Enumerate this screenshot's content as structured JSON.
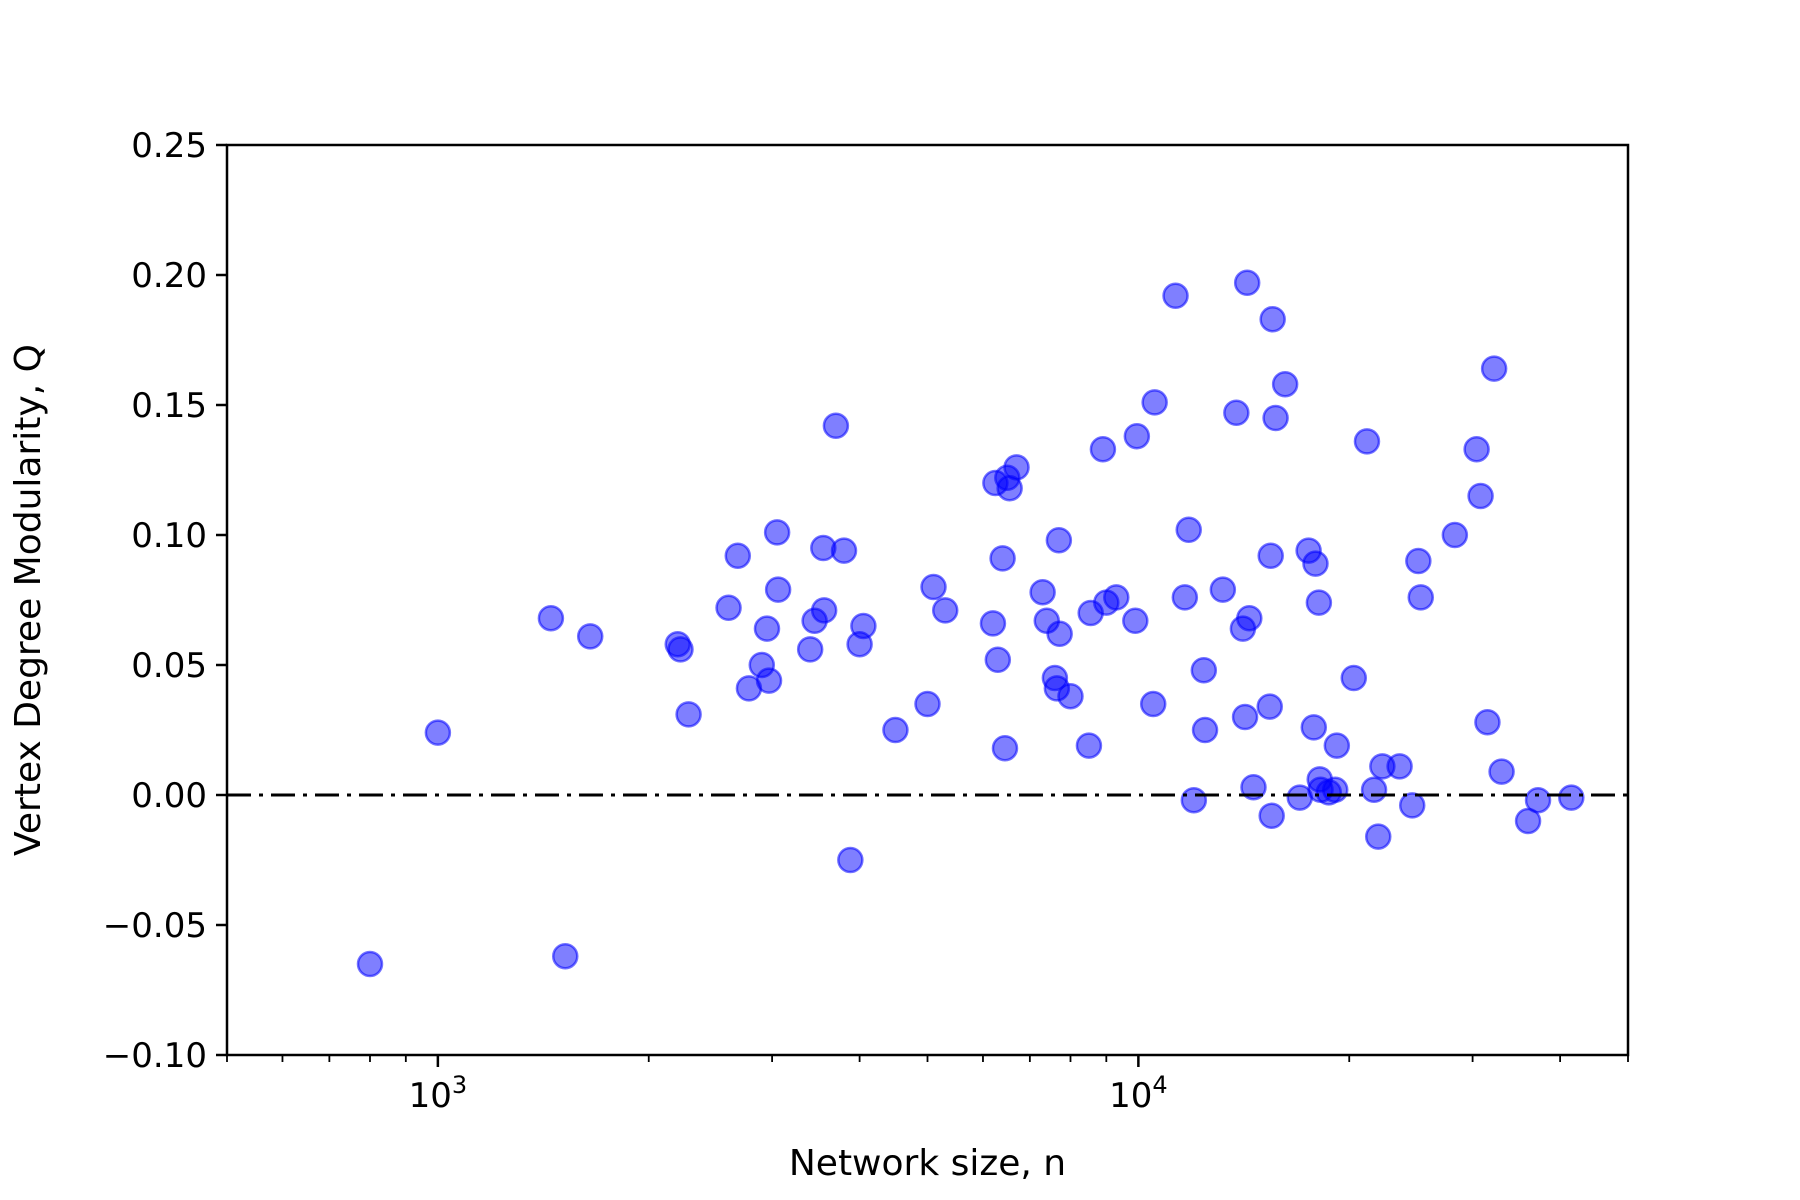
{
  "chart_data": {
    "type": "scatter",
    "title": "",
    "xlabel": "Network size, n",
    "ylabel": "Vertex Degree Modularity, Q",
    "xscale": "log",
    "xlim": [
      500,
      50000
    ],
    "ylim": [
      -0.1,
      0.25
    ],
    "grid": false,
    "legend": "none",
    "marker_color": "#0000ff",
    "marker_opacity": 0.5,
    "reference_line": {
      "y": 0.0,
      "style": "dash-dot",
      "color": "#000000"
    },
    "x_tick_labels": [
      {
        "value": 1000,
        "base": "10",
        "exp": "3"
      },
      {
        "value": 10000,
        "base": "10",
        "exp": "4"
      }
    ],
    "y_tick_labels": [
      {
        "value": 0.25,
        "label": "0.25"
      },
      {
        "value": 0.2,
        "label": "0.20"
      },
      {
        "value": 0.15,
        "label": "0.15"
      },
      {
        "value": 0.1,
        "label": "0.10"
      },
      {
        "value": 0.05,
        "label": "0.05"
      },
      {
        "value": 0.0,
        "label": "0.00"
      },
      {
        "value": -0.05,
        "label": "−0.05"
      },
      {
        "value": -0.1,
        "label": "−0.10"
      }
    ],
    "points": [
      [
        800,
        -0.065
      ],
      [
        1000,
        0.024
      ],
      [
        1450,
        0.068
      ],
      [
        1520,
        -0.062
      ],
      [
        1650,
        0.061
      ],
      [
        2200,
        0.058
      ],
      [
        2220,
        0.056
      ],
      [
        2280,
        0.031
      ],
      [
        2600,
        0.072
      ],
      [
        2680,
        0.092
      ],
      [
        2780,
        0.041
      ],
      [
        2900,
        0.05
      ],
      [
        2950,
        0.064
      ],
      [
        2970,
        0.044
      ],
      [
        3050,
        0.101
      ],
      [
        3060,
        0.079
      ],
      [
        3400,
        0.056
      ],
      [
        3450,
        0.067
      ],
      [
        3550,
        0.095
      ],
      [
        3560,
        0.071
      ],
      [
        3700,
        0.142
      ],
      [
        3800,
        0.094
      ],
      [
        3880,
        -0.025
      ],
      [
        4000,
        0.058
      ],
      [
        4050,
        0.065
      ],
      [
        4500,
        0.025
      ],
      [
        5000,
        0.035
      ],
      [
        5100,
        0.08
      ],
      [
        5300,
        0.071
      ],
      [
        6200,
        0.066
      ],
      [
        6250,
        0.12
      ],
      [
        6300,
        0.052
      ],
      [
        6400,
        0.091
      ],
      [
        6450,
        0.018
      ],
      [
        6500,
        0.122
      ],
      [
        6550,
        0.118
      ],
      [
        6700,
        0.126
      ],
      [
        7300,
        0.078
      ],
      [
        7400,
        0.067
      ],
      [
        7600,
        0.045
      ],
      [
        7650,
        0.041
      ],
      [
        7700,
        0.098
      ],
      [
        7720,
        0.062
      ],
      [
        8000,
        0.038
      ],
      [
        8500,
        0.019
      ],
      [
        8550,
        0.07
      ],
      [
        8900,
        0.133
      ],
      [
        9000,
        0.074
      ],
      [
        9300,
        0.076
      ],
      [
        9900,
        0.067
      ],
      [
        9950,
        0.138
      ],
      [
        10500,
        0.035
      ],
      [
        10550,
        0.151
      ],
      [
        11300,
        0.192
      ],
      [
        11650,
        0.076
      ],
      [
        11800,
        0.102
      ],
      [
        12000,
        -0.002
      ],
      [
        12400,
        0.048
      ],
      [
        12450,
        0.025
      ],
      [
        13200,
        0.079
      ],
      [
        13800,
        0.147
      ],
      [
        14100,
        0.064
      ],
      [
        14200,
        0.03
      ],
      [
        14300,
        0.197
      ],
      [
        14400,
        0.068
      ],
      [
        14600,
        0.003
      ],
      [
        15400,
        0.034
      ],
      [
        15450,
        0.092
      ],
      [
        15500,
        -0.008
      ],
      [
        15550,
        0.183
      ],
      [
        15700,
        0.145
      ],
      [
        16200,
        0.158
      ],
      [
        17000,
        -0.001
      ],
      [
        17500,
        0.094
      ],
      [
        17800,
        0.026
      ],
      [
        17900,
        0.089
      ],
      [
        18100,
        0.074
      ],
      [
        18150,
        0.006
      ],
      [
        18200,
        0.002
      ],
      [
        18700,
        0.001
      ],
      [
        19100,
        0.002
      ],
      [
        19200,
        0.019
      ],
      [
        20300,
        0.045
      ],
      [
        21200,
        0.136
      ],
      [
        21700,
        0.002
      ],
      [
        22000,
        -0.016
      ],
      [
        22300,
        0.011
      ],
      [
        23600,
        0.011
      ],
      [
        24600,
        -0.004
      ],
      [
        25100,
        0.09
      ],
      [
        25300,
        0.076
      ],
      [
        28300,
        0.1
      ],
      [
        30400,
        0.133
      ],
      [
        30800,
        0.115
      ],
      [
        31500,
        0.028
      ],
      [
        32200,
        0.164
      ],
      [
        33000,
        0.009
      ],
      [
        36000,
        -0.01
      ],
      [
        37200,
        -0.002
      ],
      [
        41500,
        -0.001
      ]
    ]
  }
}
